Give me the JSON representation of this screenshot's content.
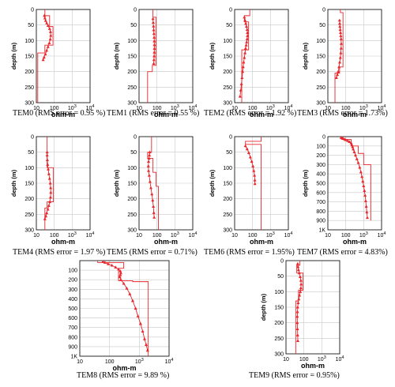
{
  "colors": {
    "model": "#e8262b",
    "data": "#e8262b",
    "grid": "#c8c8c8",
    "frame": "#000000"
  },
  "chart_data": [
    {
      "type": "line",
      "id": "TEM0",
      "caption": "TEM0 (RMS error = 0.95 %)",
      "xlabel": "ohm-m",
      "ylabel": "depth (m)",
      "x_scale": "log",
      "xlim": [
        10,
        10000
      ],
      "ylim": [
        0,
        300
      ],
      "xticks": [
        "10",
        "100",
        "10^3",
        "10^4"
      ],
      "yticks": [
        "0",
        "50",
        "100",
        "150",
        "200",
        "250",
        "300"
      ],
      "series": [
        {
          "kind": "model-steps",
          "x": [
            30,
            30,
            55,
            55,
            85,
            85,
            30,
            30,
            12,
            12
          ],
          "y": [
            0,
            20,
            20,
            55,
            55,
            115,
            115,
            140,
            140,
            300
          ]
        },
        {
          "kind": "data-points",
          "x": [
            28,
            30,
            33,
            38,
            45,
            55,
            62,
            64,
            60,
            53,
            45,
            38,
            32,
            27,
            24
          ],
          "y": [
            20,
            28,
            36,
            44,
            52,
            62,
            72,
            84,
            96,
            108,
            120,
            132,
            144,
            154,
            162
          ]
        }
      ]
    },
    {
      "type": "line",
      "id": "TEM1",
      "caption": "TEM1 (RMS error = 0.55 %)",
      "xlabel": "ohm-m",
      "ylabel": "depth (m)",
      "x_scale": "log",
      "xlim": [
        10,
        10000
      ],
      "ylim": [
        0,
        300
      ],
      "xticks": [
        "10",
        "100",
        "10^3",
        "10^4"
      ],
      "yticks": [
        "0",
        "50",
        "100",
        "150",
        "200",
        "250",
        "300"
      ],
      "series": [
        {
          "kind": "model-steps",
          "x": [
            60,
            60,
            90,
            90,
            55,
            55,
            30,
            30
          ],
          "y": [
            0,
            25,
            25,
            180,
            180,
            200,
            200,
            300
          ]
        },
        {
          "kind": "data-points",
          "x": [
            60,
            62,
            64,
            66,
            68,
            70,
            71,
            72,
            72,
            71,
            70,
            68,
            66
          ],
          "y": [
            30,
            42,
            54,
            66,
            78,
            90,
            102,
            114,
            126,
            138,
            150,
            162,
            174
          ]
        }
      ]
    },
    {
      "type": "line",
      "id": "TEM2",
      "caption": "TEM2 (RMS error = 1.92 %)",
      "xlabel": "ohm-m",
      "ylabel": "depth (m)",
      "x_scale": "log",
      "xlim": [
        10,
        10000
      ],
      "ylim": [
        0,
        300
      ],
      "xticks": [
        "10",
        "100",
        "10^3",
        "10^4"
      ],
      "yticks": [
        "0",
        "50",
        "100",
        "150",
        "200",
        "250",
        "300"
      ],
      "series": [
        {
          "kind": "model-steps",
          "x": [
            70,
            70,
            35,
            35,
            60,
            60,
            25,
            25
          ],
          "y": [
            0,
            20,
            20,
            40,
            40,
            130,
            130,
            300
          ]
        },
        {
          "kind": "data-points",
          "x": [
            35,
            38,
            42,
            46,
            50,
            52,
            52,
            50,
            47,
            44,
            41,
            38,
            35,
            32,
            30,
            28,
            26,
            24,
            22,
            20
          ],
          "y": [
            25,
            35,
            45,
            55,
            65,
            75,
            85,
            95,
            105,
            115,
            125,
            140,
            155,
            170,
            185,
            200,
            220,
            240,
            260,
            280
          ]
        }
      ]
    },
    {
      "type": "line",
      "id": "TEM3",
      "caption": "TEM3 (RMS error = 1.73%)",
      "xlabel": "ohm-m",
      "ylabel": "depth (m)",
      "x_scale": "log",
      "xlim": [
        10,
        10000
      ],
      "ylim": [
        0,
        300
      ],
      "xticks": [
        "10",
        "100",
        "10^3",
        "10^4"
      ],
      "yticks": [
        "0",
        "50",
        "100",
        "150",
        "200",
        "250",
        "300"
      ],
      "series": [
        {
          "kind": "model-steps",
          "x": [
            50,
            50,
            70,
            70,
            45,
            45,
            25,
            25
          ],
          "y": [
            0,
            10,
            10,
            185,
            185,
            205,
            205,
            300
          ]
        },
        {
          "kind": "data-points",
          "x": [
            45,
            46,
            47,
            49,
            51,
            53,
            55,
            56,
            55,
            53,
            50,
            46,
            42,
            38,
            34,
            30
          ],
          "y": [
            35,
            45,
            55,
            65,
            75,
            85,
            95,
            110,
            125,
            140,
            155,
            170,
            185,
            200,
            210,
            220
          ]
        }
      ]
    },
    {
      "type": "line",
      "id": "TEM4",
      "caption": "TEM4 (RMS error = 1.97 %)",
      "xlabel": "ohm-m",
      "ylabel": "depth (m)",
      "x_scale": "log",
      "xlim": [
        10,
        10000
      ],
      "ylim": [
        0,
        300
      ],
      "xticks": [
        "10",
        "100",
        "10^3",
        "10^4"
      ],
      "yticks": [
        "0",
        "50",
        "100",
        "150",
        "200",
        "250",
        "300"
      ],
      "series": [
        {
          "kind": "model-steps",
          "x": [
            40,
            40,
            90,
            90,
            40,
            40,
            30,
            30
          ],
          "y": [
            0,
            100,
            100,
            210,
            210,
            230,
            230,
            300
          ]
        },
        {
          "kind": "data-points",
          "x": [
            40,
            40,
            41,
            43,
            46,
            50,
            55,
            60,
            63,
            64,
            62,
            57,
            50,
            44,
            38,
            34,
            30
          ],
          "y": [
            50,
            60,
            75,
            90,
            105,
            120,
            135,
            150,
            165,
            180,
            195,
            210,
            222,
            234,
            246,
            256,
            265
          ]
        }
      ]
    },
    {
      "type": "line",
      "id": "TEM5",
      "caption": "TEM5 (RMS error = 0.71%)",
      "xlabel": "ohm-m",
      "ylabel": "depth (m)",
      "x_scale": "log",
      "xlim": [
        10,
        10000
      ],
      "ylim": [
        0,
        300
      ],
      "xticks": [
        "10",
        "100",
        "10^3",
        "10^4"
      ],
      "yticks": [
        "0",
        "50",
        "100",
        "150",
        "200",
        "250",
        "300"
      ],
      "series": [
        {
          "kind": "model-steps",
          "x": [
            50,
            50,
            30,
            30,
            60,
            60,
            90,
            90,
            120,
            120
          ],
          "y": [
            0,
            50,
            50,
            70,
            70,
            115,
            115,
            160,
            160,
            300
          ]
        },
        {
          "kind": "data-points",
          "x": [
            40,
            38,
            36,
            34,
            33,
            34,
            37,
            41,
            46,
            52,
            58,
            63,
            67,
            70
          ],
          "y": [
            50,
            60,
            70,
            80,
            95,
            110,
            125,
            145,
            165,
            185,
            205,
            225,
            245,
            260
          ]
        }
      ]
    },
    {
      "type": "line",
      "id": "TEM6",
      "caption": "TEM6 (RMS error = 1.95%)",
      "xlabel": "ohm-m",
      "ylabel": "depth (m)",
      "x_scale": "log",
      "xlim": [
        10,
        10000
      ],
      "ylim": [
        0,
        300
      ],
      "xticks": [
        "10",
        "100",
        "10^3",
        "10^4"
      ],
      "yticks": [
        "0",
        "50",
        "100",
        "150",
        "200",
        "250",
        "300"
      ],
      "series": [
        {
          "kind": "model-steps",
          "x": [
            300,
            300,
            40,
            40,
            300,
            300
          ],
          "y": [
            0,
            15,
            15,
            25,
            25,
            300
          ]
        },
        {
          "kind": "data-points",
          "x": [
            40,
            50,
            62,
            75,
            90,
            105,
            118,
            128,
            134,
            136
          ],
          "y": [
            30,
            40,
            52,
            66,
            80,
            95,
            110,
            125,
            140,
            152
          ]
        }
      ]
    },
    {
      "type": "line",
      "id": "TEM7",
      "caption": "TEM7 (RMS error = 4.83%)",
      "xlabel": "ohm-m",
      "ylabel": "depth (m)",
      "x_scale": "log",
      "xlim": [
        10,
        10000
      ],
      "ylim": [
        0,
        1000
      ],
      "xticks": [
        "10",
        "100",
        "10^3",
        "10^4"
      ],
      "yticks": [
        "0",
        "100",
        "200",
        "300",
        "400",
        "500",
        "600",
        "700",
        "800",
        "900",
        "1K"
      ],
      "series": [
        {
          "kind": "model-steps",
          "x": [
            60,
            60,
            200,
            200,
            500,
            500,
            1000,
            1000,
            2500,
            2500
          ],
          "y": [
            0,
            30,
            30,
            100,
            100,
            180,
            180,
            300,
            300,
            900
          ]
        },
        {
          "kind": "data-points",
          "x": [
            55,
            60,
            70,
            85,
            100,
            130,
            160,
            200,
            220,
            240,
            260,
            300,
            350,
            420,
            500,
            600,
            700,
            800,
            900,
            1000,
            1100,
            1200,
            1300,
            1400,
            1500,
            1600
          ],
          "y": [
            10,
            15,
            20,
            28,
            35,
            45,
            55,
            70,
            90,
            110,
            135,
            165,
            200,
            240,
            280,
            330,
            380,
            430,
            480,
            530,
            580,
            630,
            690,
            750,
            810,
            870
          ]
        }
      ]
    },
    {
      "type": "line",
      "id": "TEM8",
      "caption": "TEM8 (RMS error = 9.89 %)",
      "xlabel": "ohm-m",
      "ylabel": "",
      "x_scale": "log",
      "xlim": [
        10,
        10000
      ],
      "ylim": [
        0,
        1000
      ],
      "xticks": [
        "10",
        "100",
        "10^3",
        "10^4"
      ],
      "yticks": [
        "100",
        "200",
        "300",
        "400",
        "500",
        "600",
        "700",
        "800",
        "900",
        "1K"
      ],
      "series": [
        {
          "kind": "model-steps",
          "x": [
            40,
            40,
            300,
            300,
            200,
            200,
            600,
            600,
            2000,
            2000
          ],
          "y": [
            0,
            20,
            20,
            80,
            80,
            210,
            210,
            220,
            220,
            1000
          ]
        },
        {
          "kind": "data-points",
          "x": [
            60,
            70,
            90,
            120,
            160,
            200,
            230,
            240,
            230,
            220,
            240,
            300,
            380,
            480,
            600,
            750,
            900,
            1100,
            1300,
            1500,
            1700,
            1900
          ],
          "y": [
            10,
            20,
            35,
            50,
            70,
            90,
            110,
            130,
            150,
            170,
            200,
            240,
            290,
            350,
            420,
            500,
            580,
            660,
            740,
            820,
            880,
            940
          ]
        }
      ]
    },
    {
      "type": "line",
      "id": "TEM9",
      "caption": "TEM9 (RMS error = 0.95%)",
      "xlabel": "ohm-m",
      "ylabel": "depth (m)",
      "x_scale": "log",
      "xlim": [
        10,
        10000
      ],
      "ylim": [
        0,
        300
      ],
      "xticks": [
        "10",
        "100",
        "10^3",
        "10^4"
      ],
      "yticks": [
        "0",
        "50",
        "100",
        "150",
        "200",
        "250",
        "300"
      ],
      "series": [
        {
          "kind": "model-steps",
          "x": [
            60,
            60,
            40,
            40,
            90,
            90,
            50,
            50,
            35,
            35
          ],
          "y": [
            0,
            15,
            15,
            40,
            40,
            95,
            95,
            130,
            130,
            300
          ]
        },
        {
          "kind": "data-points",
          "x": [
            45,
            47,
            50,
            55,
            62,
            68,
            70,
            68,
            63,
            57,
            52,
            48,
            45,
            44,
            43,
            43,
            44,
            45,
            46
          ],
          "y": [
            10,
            20,
            30,
            40,
            52,
            64,
            76,
            88,
            100,
            112,
            124,
            136,
            150,
            165,
            180,
            200,
            220,
            240,
            258
          ]
        }
      ]
    }
  ]
}
